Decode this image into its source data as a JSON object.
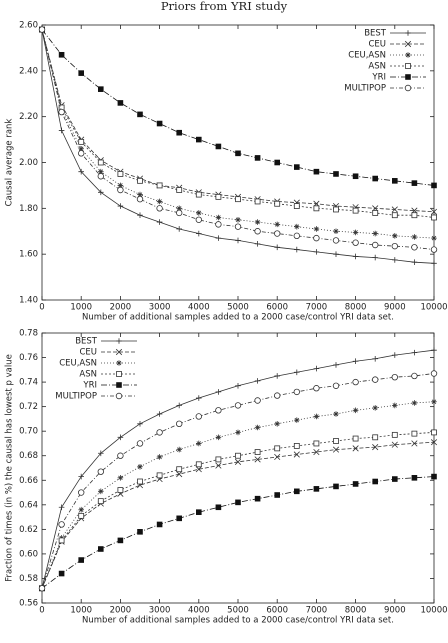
{
  "title": "Priors from YRI study",
  "chart_data": [
    {
      "type": "line",
      "xlabel": "Number of additional samples added to a 2000 case/control YRI data set.",
      "ylabel": "Causal average rank",
      "x": [
        0,
        500,
        1000,
        1500,
        2000,
        2500,
        3000,
        3500,
        4000,
        4500,
        5000,
        5500,
        6000,
        6500,
        7000,
        7500,
        8000,
        8500,
        9000,
        9500,
        10000
      ],
      "xlim": [
        0,
        10000
      ],
      "xticks": [
        0,
        1000,
        2000,
        3000,
        4000,
        5000,
        6000,
        7000,
        8000,
        9000,
        10000
      ],
      "ylim": [
        1.4,
        2.6
      ],
      "yticks": [
        {
          "value": 1.4,
          "label": "1.40"
        },
        {
          "value": 1.6,
          "label": "1.60"
        },
        {
          "value": 1.8,
          "label": "1.80"
        },
        {
          "value": 2.0,
          "label": "2.00"
        },
        {
          "value": 2.2,
          "label": "2.20"
        },
        {
          "value": 2.4,
          "label": "2.40"
        },
        {
          "value": 2.6,
          "label": "2.60"
        }
      ],
      "legend": "upper right",
      "series": [
        {
          "name": "BEST",
          "color": "#333333",
          "marker": "plus",
          "dash": "none",
          "values": [
            2.58,
            2.14,
            1.96,
            1.87,
            1.81,
            1.77,
            1.74,
            1.71,
            1.69,
            1.67,
            1.66,
            1.645,
            1.63,
            1.62,
            1.61,
            1.6,
            1.59,
            1.585,
            1.575,
            1.565,
            1.56
          ]
        },
        {
          "name": "CEU",
          "color": "#333333",
          "marker": "cross",
          "dash": "4,2",
          "values": [
            2.58,
            2.25,
            2.1,
            2.01,
            1.96,
            1.93,
            1.9,
            1.89,
            1.87,
            1.86,
            1.85,
            1.84,
            1.83,
            1.825,
            1.82,
            1.81,
            1.805,
            1.8,
            1.795,
            1.79,
            1.785
          ]
        },
        {
          "name": "CEU,ASN",
          "color": "#333333",
          "marker": "star",
          "dash": "1,2",
          "values": [
            2.58,
            2.23,
            2.06,
            1.96,
            1.9,
            1.86,
            1.83,
            1.8,
            1.78,
            1.76,
            1.75,
            1.74,
            1.73,
            1.72,
            1.71,
            1.7,
            1.695,
            1.69,
            1.68,
            1.675,
            1.67
          ]
        },
        {
          "name": "ASN",
          "color": "#333333",
          "marker": "square",
          "dash": "2,2",
          "values": [
            2.58,
            2.24,
            2.09,
            2.0,
            1.95,
            1.92,
            1.9,
            1.88,
            1.86,
            1.85,
            1.84,
            1.83,
            1.82,
            1.81,
            1.8,
            1.795,
            1.79,
            1.78,
            1.77,
            1.77,
            1.76
          ]
        },
        {
          "name": "YRI",
          "color": "#111111",
          "marker": "filled-square",
          "dash": "6,2,1,2",
          "values": [
            2.58,
            2.47,
            2.39,
            2.32,
            2.26,
            2.21,
            2.17,
            2.13,
            2.1,
            2.07,
            2.04,
            2.02,
            2.0,
            1.98,
            1.96,
            1.95,
            1.94,
            1.93,
            1.92,
            1.91,
            1.9
          ]
        },
        {
          "name": "MULTIPOP",
          "color": "#333333",
          "marker": "circle",
          "dash": "4,2,1,2",
          "values": [
            2.58,
            2.22,
            2.04,
            1.94,
            1.88,
            1.84,
            1.8,
            1.78,
            1.75,
            1.73,
            1.72,
            1.7,
            1.69,
            1.68,
            1.67,
            1.66,
            1.65,
            1.64,
            1.635,
            1.63,
            1.62
          ]
        }
      ]
    },
    {
      "type": "line",
      "xlabel": "Number of additional samples added to a 2000 case/control YRI data set.",
      "ylabel": "Fraction of times (in %) the causal has lowest p value",
      "x": [
        0,
        500,
        1000,
        1500,
        2000,
        2500,
        3000,
        3500,
        4000,
        4500,
        5000,
        5500,
        6000,
        6500,
        7000,
        7500,
        8000,
        8500,
        9000,
        9500,
        10000
      ],
      "xlim": [
        0,
        10000
      ],
      "xticks": [
        0,
        1000,
        2000,
        3000,
        4000,
        5000,
        6000,
        7000,
        8000,
        9000,
        10000
      ],
      "ylim": [
        0.56,
        0.78
      ],
      "yticks": [
        0.56,
        0.58,
        0.6,
        0.62,
        0.64,
        0.66,
        0.68,
        0.7,
        0.72,
        0.74,
        0.76,
        0.78
      ],
      "ytick_labels": [
        "0.56",
        "0.58",
        "0.60",
        "0.62",
        "0.64",
        "0.66",
        "0.68",
        "0.70",
        "0.72",
        "0.74",
        "0.76",
        "0.78"
      ],
      "legend": "upper left",
      "series": [
        {
          "name": "BEST",
          "color": "#333333",
          "marker": "plus",
          "dash": "none",
          "values": [
            0.572,
            0.638,
            0.663,
            0.682,
            0.695,
            0.706,
            0.714,
            0.721,
            0.727,
            0.732,
            0.737,
            0.741,
            0.745,
            0.748,
            0.751,
            0.754,
            0.757,
            0.759,
            0.762,
            0.764,
            0.766
          ]
        },
        {
          "name": "CEU",
          "color": "#333333",
          "marker": "cross",
          "dash": "4,2",
          "values": [
            0.572,
            0.61,
            0.629,
            0.641,
            0.649,
            0.656,
            0.661,
            0.665,
            0.669,
            0.672,
            0.675,
            0.677,
            0.679,
            0.681,
            0.683,
            0.685,
            0.686,
            0.687,
            0.689,
            0.69,
            0.691
          ]
        },
        {
          "name": "CEU,ASN",
          "color": "#333333",
          "marker": "star",
          "dash": "1,2",
          "values": [
            0.572,
            0.613,
            0.636,
            0.651,
            0.662,
            0.671,
            0.679,
            0.685,
            0.69,
            0.695,
            0.699,
            0.703,
            0.706,
            0.709,
            0.712,
            0.714,
            0.717,
            0.719,
            0.721,
            0.723,
            0.724
          ]
        },
        {
          "name": "ASN",
          "color": "#333333",
          "marker": "square",
          "dash": "2,2",
          "values": [
            0.572,
            0.611,
            0.631,
            0.643,
            0.652,
            0.659,
            0.664,
            0.669,
            0.673,
            0.677,
            0.68,
            0.683,
            0.686,
            0.688,
            0.69,
            0.692,
            0.694,
            0.695,
            0.697,
            0.698,
            0.699
          ]
        },
        {
          "name": "YRI",
          "color": "#111111",
          "marker": "filled-square",
          "dash": "6,2,1,2",
          "values": [
            0.572,
            0.584,
            0.595,
            0.604,
            0.611,
            0.618,
            0.624,
            0.629,
            0.634,
            0.638,
            0.642,
            0.645,
            0.648,
            0.651,
            0.653,
            0.655,
            0.657,
            0.659,
            0.661,
            0.662,
            0.663
          ]
        },
        {
          "name": "MULTIPOP",
          "color": "#333333",
          "marker": "circle",
          "dash": "4,2,1,2",
          "values": [
            0.572,
            0.624,
            0.65,
            0.667,
            0.68,
            0.69,
            0.699,
            0.706,
            0.712,
            0.717,
            0.721,
            0.725,
            0.729,
            0.732,
            0.735,
            0.737,
            0.74,
            0.742,
            0.744,
            0.745,
            0.747
          ]
        }
      ]
    }
  ]
}
